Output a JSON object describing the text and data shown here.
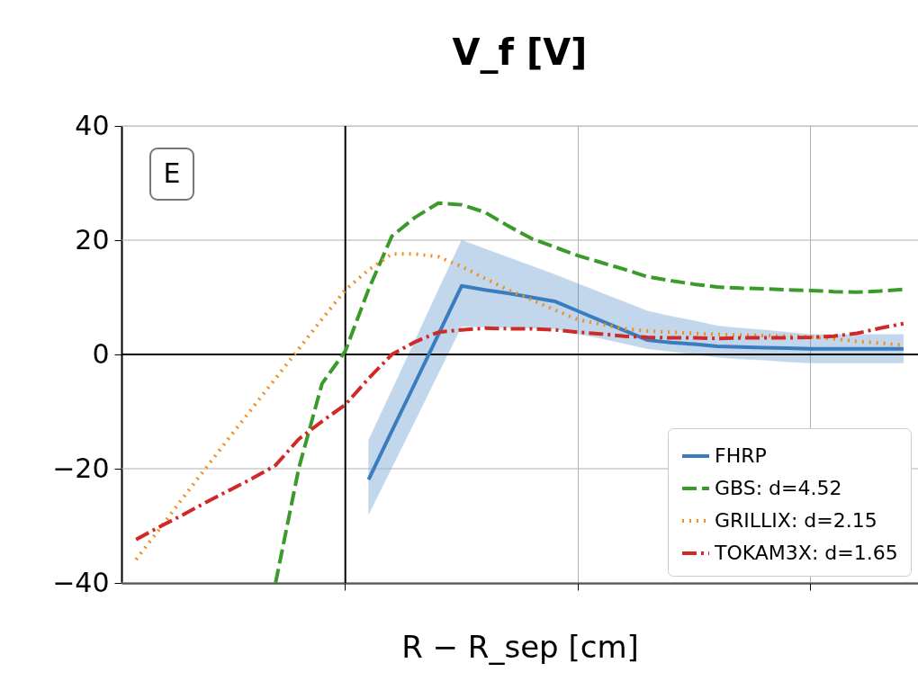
{
  "chart_data": {
    "type": "line",
    "title": "V_f [V]",
    "xlabel": "R − R_sep [cm]",
    "categories": [
      null,
      null,
      null,
      null,
      null,
      null,
      null,
      null,
      null,
      null,
      null,
      null,
      null,
      null,
      null,
      null,
      null,
      null,
      null,
      null,
      null,
      null,
      null,
      null,
      null,
      null,
      null,
      null,
      null,
      null,
      null,
      null,
      null,
      null
    ],
    "ylim": [
      -40,
      40
    ],
    "yticks": [
      -40,
      -20,
      0,
      20,
      40
    ],
    "grid": true,
    "legend": "bottom right",
    "annotations": [
      "E"
    ],
    "series": [
      {
        "name": "FHRP",
        "color": "#3a7dbf",
        "line_style": "solid",
        "values": [
          null,
          null,
          null,
          null,
          null,
          null,
          null,
          null,
          null,
          null,
          -21.9,
          -13.4,
          -5.0,
          3.5,
          12,
          11.3,
          10.7,
          10.0,
          9.3,
          7.6,
          5.9,
          4.2,
          2.5,
          2.1,
          1.8,
          1.4,
          1.3,
          1.2,
          1.1,
          1.0,
          1.0,
          1.0,
          1.0,
          1.0
        ],
        "lower": [
          null,
          null,
          null,
          null,
          null,
          null,
          null,
          null,
          null,
          null,
          -28,
          -19.8,
          -11.6,
          -3.3,
          4.9,
          4.8,
          4.7,
          4.6,
          4.5,
          3.6,
          2.8,
          1.9,
          1.0,
          0.5,
          0,
          -0.5,
          -0.8,
          -1.0,
          -1.3,
          -1.5,
          -1.5,
          -1.5,
          -1.5,
          -1.5
        ],
        "upper": [
          null,
          null,
          null,
          null,
          null,
          null,
          null,
          null,
          null,
          null,
          -15,
          -6.3,
          2.5,
          11.3,
          20,
          18.5,
          17,
          15.5,
          14,
          12.4,
          10.8,
          9.2,
          7.6,
          6.7,
          5.9,
          5.0,
          4.6,
          4.3,
          3.9,
          3.5,
          3.5,
          3.5,
          3.5,
          3.5
        ]
      },
      {
        "name": "GBS: d=4.52",
        "color": "#3a9b2a",
        "line_style": "dashed",
        "values": [
          null,
          null,
          null,
          null,
          null,
          null,
          -40,
          -19.9,
          -5.1,
          0.6,
          11.4,
          20.7,
          24,
          26.5,
          26.2,
          24.9,
          22.5,
          20.3,
          18.8,
          17.3,
          16.1,
          14.9,
          13.6,
          12.9,
          12.3,
          11.8,
          11.6,
          11.5,
          11.3,
          11.2,
          11.0,
          10.9,
          11.1,
          11.4
        ]
      },
      {
        "name": "GRILLIX: d=2.15",
        "color": "#f28e1c",
        "line_style": "dotted",
        "values": [
          -35.9,
          -30.6,
          -25.2,
          -19.9,
          -14.6,
          -9.4,
          -4.2,
          1.0,
          6.2,
          11.3,
          14.8,
          17.6,
          17.6,
          17.1,
          15.4,
          13.3,
          11.3,
          9.6,
          7.8,
          6.1,
          5.3,
          4.5,
          4.1,
          3.9,
          3.7,
          3.5,
          3.4,
          3.3,
          3.2,
          3.1,
          2.7,
          2.3,
          2.0,
          1.6
        ]
      },
      {
        "name": "TOKAM3X: d=1.65",
        "color": "#d02a28",
        "line_style": "dashdot",
        "values": [
          -32.4,
          -30.2,
          -28.1,
          -25.9,
          -23.8,
          -21.7,
          -19.4,
          -14.8,
          -11.7,
          -8.8,
          -4.2,
          0,
          2.2,
          3.9,
          4.3,
          4.6,
          4.5,
          4.5,
          4.3,
          3.9,
          3.6,
          3.2,
          3.0,
          2.9,
          2.9,
          2.8,
          2.9,
          2.9,
          2.9,
          3.0,
          3.2,
          3.7,
          4.6,
          5.4
        ]
      }
    ]
  }
}
